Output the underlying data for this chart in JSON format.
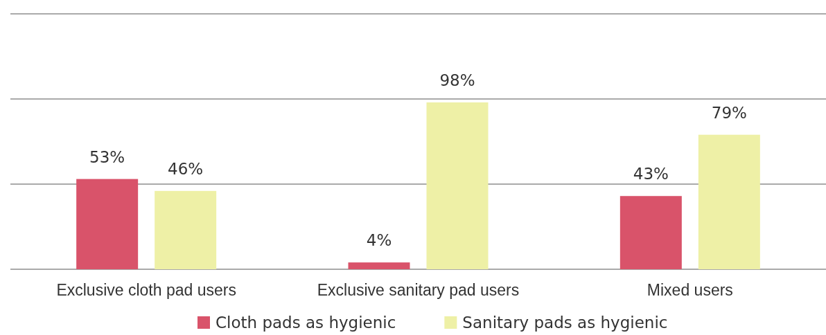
{
  "chart_data": {
    "type": "bar",
    "categories": [
      "Exclusive cloth pad users",
      "Exclusive sanitary pad users",
      "Mixed users"
    ],
    "series": [
      {
        "name": "Cloth pads as hygienic",
        "color": "#d9536a",
        "values": [
          53,
          4,
          43
        ],
        "value_labels": [
          "53%",
          "4%",
          "43%"
        ]
      },
      {
        "name": "Sanitary pads as hygienic",
        "color": "#eef0a6",
        "values": [
          46,
          98,
          79
        ],
        "value_labels": [
          "46%",
          "98%",
          "79%"
        ]
      }
    ],
    "ylim": [
      0,
      150
    ],
    "yticks": [
      {
        "value": 0,
        "label": null
      },
      {
        "value": 50,
        "label": null
      },
      {
        "value": 100,
        "label": null
      },
      {
        "value": 150,
        "label": null
      }
    ],
    "grid": "y",
    "tick_labels": "x",
    "legend": "bottom"
  }
}
